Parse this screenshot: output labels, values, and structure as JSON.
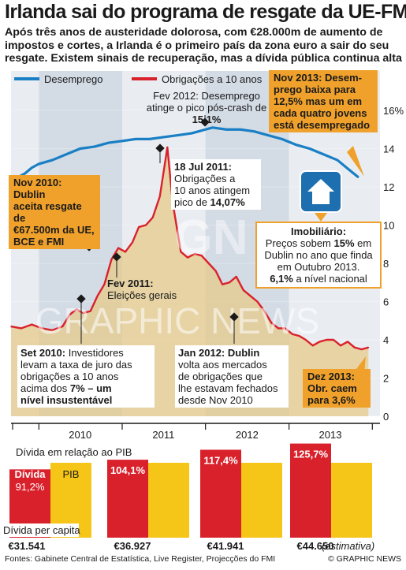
{
  "title": "Irlanda sai do programa de resgate da UE-FMI",
  "subtitle": "Após três anos de austeridade dolorosa, com €28.000m de aumento de impostos e cortes, a Irlanda é o primeiro país da zona euro a sair do seu resgate. Existem sinais de recuperação, mas a dívida pública continua alta",
  "colors": {
    "unemployment": "#1a7fc4",
    "bonds": "#d9212c",
    "accent": "#f0a12b",
    "debt": "#d9212c",
    "gdp": "#f5c518",
    "band_a": "#d3dbe5",
    "band_b": "#e9edf2"
  },
  "legend": {
    "unemployment": "Desemprego",
    "bonds": "Obrigações a 10 anos"
  },
  "annotations": {
    "fev2012": {
      "line1": "Fev 2012: Desemprego",
      "line2": "atinge o pico pós-crash de",
      "value": "15,1%"
    },
    "nov2013": {
      "line1": "Nov 2013: Desem-",
      "line2": "prego baixa para",
      "value": "12,5%",
      "line3": "mas um em",
      "line4": "cada quatro jovens",
      "line5": "está desempregado"
    },
    "jul2011": {
      "line1": "18 Jul 2011:",
      "line2": "Obrigações a",
      "line3": "10 anos atingem",
      "line4": "pico de",
      "value": "14,07%"
    },
    "nov2010": {
      "line1": "Nov 2010: Dublin",
      "line2": "aceita resgate de",
      "value": "€67.500m",
      "line3": "da UE,",
      "line4": "BCE e FMI"
    },
    "imobiliario": {
      "title": "Imobiliário:",
      "line1": "Preços sobem",
      "value1": "15%",
      "line2": "em",
      "line3": "Dublin no ano que finda",
      "line4": "em Outubro 2013.",
      "value2": "6,1%",
      "line5": "a nível nacional"
    },
    "fev2011": {
      "line1": "Fev 2011:",
      "line2": "Eleições gerais"
    },
    "set2010": {
      "line1": "Set 2010:",
      "line1b": "Investidores",
      "line2": "levam a taxa de juro das",
      "line3": "obrigações a 10 anos",
      "line4": "acima dos",
      "value": "7% – um",
      "line5": "nível insustentável"
    },
    "jan2012": {
      "line1": "Jan 2012: Dublin",
      "line2": "volta aos mercados",
      "line3": "de obrigações que",
      "line4": "lhe estavam fechados",
      "line5": "desde Nov 2010"
    },
    "dez2013": {
      "line1": "Dez 2013:",
      "line2": "Obr. caem",
      "line3": "para 3,6%"
    }
  },
  "watermark": "GRAPHIC NEWS",
  "chart_data": [
    {
      "type": "line",
      "x_range": [
        "2009-09-01",
        "2013-12-31"
      ],
      "x_tick_labels": [
        "2010",
        "2011",
        "2012",
        "2013"
      ],
      "ylim": [
        0,
        16
      ],
      "y_ticks": [
        0,
        2,
        4,
        6,
        8,
        10,
        12,
        14,
        16
      ],
      "y_tick_labels": [
        "0",
        "2",
        "4",
        "6",
        "8",
        "10",
        "12",
        "14",
        "16%"
      ],
      "series": [
        {
          "name": "Desemprego",
          "x": [
            "2009-09-01",
            "2009-10-01",
            "2009-11-01",
            "2009-12-01",
            "2010-01-01",
            "2010-03-01",
            "2010-05-01",
            "2010-07-01",
            "2010-09-01",
            "2010-11-01",
            "2011-01-01",
            "2011-03-01",
            "2011-05-01",
            "2011-07-01",
            "2011-09-01",
            "2011-11-01",
            "2012-01-01",
            "2012-02-01",
            "2012-04-01",
            "2012-06-01",
            "2012-08-01",
            "2012-10-01",
            "2012-12-01",
            "2013-02-01",
            "2013-04-01",
            "2013-06-01",
            "2013-08-01",
            "2013-10-01",
            "2013-11-01"
          ],
          "values": [
            12.3,
            12.5,
            12.7,
            13.0,
            13.2,
            13.4,
            13.7,
            14.0,
            14.1,
            14.3,
            14.4,
            14.5,
            14.5,
            14.6,
            14.7,
            14.8,
            15.0,
            15.1,
            15.0,
            15.0,
            14.9,
            14.7,
            14.5,
            14.2,
            14.0,
            13.7,
            13.4,
            12.8,
            12.5
          ]
        },
        {
          "name": "Obrigações a 10 anos",
          "x": [
            "2009-09-01",
            "2009-10-15",
            "2009-12-01",
            "2010-01-15",
            "2010-03-01",
            "2010-04-15",
            "2010-05-15",
            "2010-06-15",
            "2010-07-15",
            "2010-08-15",
            "2010-09-15",
            "2010-10-15",
            "2010-11-15",
            "2010-12-15",
            "2011-01-15",
            "2011-02-15",
            "2011-03-15",
            "2011-04-15",
            "2011-05-15",
            "2011-06-15",
            "2011-07-18",
            "2011-08-10",
            "2011-09-15",
            "2011-10-15",
            "2011-11-15",
            "2011-12-15",
            "2012-01-15",
            "2012-02-15",
            "2012-03-15",
            "2012-04-15",
            "2012-05-15",
            "2012-06-15",
            "2012-07-15",
            "2012-08-15",
            "2012-09-15",
            "2012-10-15",
            "2012-11-15",
            "2012-12-15",
            "2013-01-15",
            "2013-02-15",
            "2013-03-15",
            "2013-04-15",
            "2013-05-15",
            "2013-06-15",
            "2013-07-15",
            "2013-08-15",
            "2013-09-15",
            "2013-10-15",
            "2013-11-15",
            "2013-12-15"
          ],
          "values": [
            4.7,
            4.6,
            4.8,
            4.6,
            4.5,
            4.7,
            5.3,
            5.6,
            5.4,
            5.5,
            6.3,
            6.9,
            8.2,
            8.8,
            8.6,
            9.1,
            9.9,
            10.0,
            10.4,
            11.5,
            14.07,
            11.2,
            8.6,
            8.3,
            8.5,
            8.4,
            8.0,
            7.6,
            6.9,
            7.0,
            7.3,
            6.6,
            6.3,
            6.0,
            5.5,
            4.9,
            4.6,
            4.6,
            4.3,
            4.2,
            4.0,
            3.7,
            3.9,
            4.0,
            4.0,
            3.7,
            3.9,
            3.6,
            3.5,
            3.6
          ]
        }
      ]
    },
    {
      "type": "bar",
      "title": "Dívida em relação ao PIB",
      "categories": [
        "2010",
        "2011",
        "2012",
        "2013"
      ],
      "series": [
        {
          "name": "Dívida",
          "values": [
            91.2,
            104.1,
            117.4,
            125.7
          ],
          "labels": [
            "91,2%",
            "104,1%",
            "117,4%",
            "125,7%"
          ]
        },
        {
          "name": "PIB",
          "values": [
            100,
            100,
            100,
            100
          ]
        }
      ],
      "per_capita_label": "Dívida per capita",
      "per_capita": [
        "€31.541",
        "€36.927",
        "€41.941",
        "€44.650"
      ],
      "estimate_note": "(estimativa)"
    }
  ],
  "footer": {
    "sources": "Fontes: Gabinete Central de Estatística, Live Register, Projecções do FMI",
    "credit": "© GRAPHIC NEWS"
  }
}
